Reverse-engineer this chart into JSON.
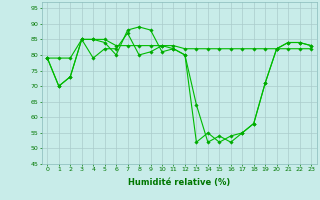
{
  "background_color": "#c8ece9",
  "grid_color": "#aacccc",
  "line_color": "#00bb00",
  "marker_color": "#00aa00",
  "xlabel": "Humidité relative (%)",
  "xlabel_color": "#007700",
  "ylim": [
    45,
    97
  ],
  "xlim": [
    -0.5,
    23.5
  ],
  "yticks": [
    45,
    50,
    55,
    60,
    65,
    70,
    75,
    80,
    85,
    90,
    95
  ],
  "xticks": [
    0,
    1,
    2,
    3,
    4,
    5,
    6,
    7,
    8,
    9,
    10,
    11,
    12,
    13,
    14,
    15,
    16,
    17,
    18,
    19,
    20,
    21,
    22,
    23
  ],
  "series": [
    [
      79,
      70,
      73,
      85,
      79,
      82,
      82,
      87,
      80,
      81,
      83,
      82,
      80,
      64,
      52,
      54,
      52,
      55,
      58,
      71,
      82,
      84,
      84,
      83
    ],
    [
      79,
      70,
      73,
      85,
      85,
      84,
      80,
      88,
      89,
      88,
      81,
      82,
      80,
      52,
      55,
      52,
      54,
      55,
      58,
      71,
      82,
      84,
      84,
      83
    ],
    [
      79,
      79,
      79,
      85,
      85,
      85,
      83,
      83,
      83,
      83,
      83,
      83,
      82,
      82,
      82,
      82,
      82,
      82,
      82,
      82,
      82,
      82,
      82,
      82
    ]
  ]
}
